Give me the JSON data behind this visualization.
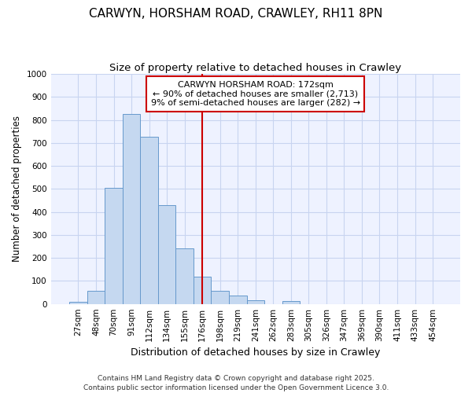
{
  "title": "CARWYN, HORSHAM ROAD, CRAWLEY, RH11 8PN",
  "subtitle": "Size of property relative to detached houses in Crawley",
  "xlabel": "Distribution of detached houses by size in Crawley",
  "ylabel": "Number of detached properties",
  "categories": [
    "27sqm",
    "48sqm",
    "70sqm",
    "91sqm",
    "112sqm",
    "134sqm",
    "155sqm",
    "176sqm",
    "198sqm",
    "219sqm",
    "241sqm",
    "262sqm",
    "283sqm",
    "305sqm",
    "326sqm",
    "347sqm",
    "369sqm",
    "390sqm",
    "411sqm",
    "433sqm",
    "454sqm"
  ],
  "values": [
    10,
    57,
    505,
    825,
    728,
    430,
    240,
    120,
    58,
    35,
    15,
    0,
    12,
    0,
    0,
    0,
    0,
    0,
    0,
    0,
    0
  ],
  "bar_color": "#c5d8f0",
  "bar_edge_color": "#6699cc",
  "vline_x_index": 7,
  "vline_color": "#cc0000",
  "ylim": [
    0,
    1000
  ],
  "yticks": [
    0,
    100,
    200,
    300,
    400,
    500,
    600,
    700,
    800,
    900,
    1000
  ],
  "annotation_text": "CARWYN HORSHAM ROAD: 172sqm\n← 90% of detached houses are smaller (2,713)\n9% of semi-detached houses are larger (282) →",
  "annotation_box_facecolor": "#ffffff",
  "annotation_box_edgecolor": "#cc0000",
  "background_color": "#ffffff",
  "plot_bg_color": "#eef2ff",
  "grid_color": "#c8d4f0",
  "footnote": "Contains HM Land Registry data © Crown copyright and database right 2025.\nContains public sector information licensed under the Open Government Licence 3.0.",
  "title_fontsize": 11,
  "subtitle_fontsize": 9.5,
  "xlabel_fontsize": 9,
  "ylabel_fontsize": 8.5,
  "tick_fontsize": 7.5,
  "annotation_fontsize": 8,
  "footnote_fontsize": 6.5
}
